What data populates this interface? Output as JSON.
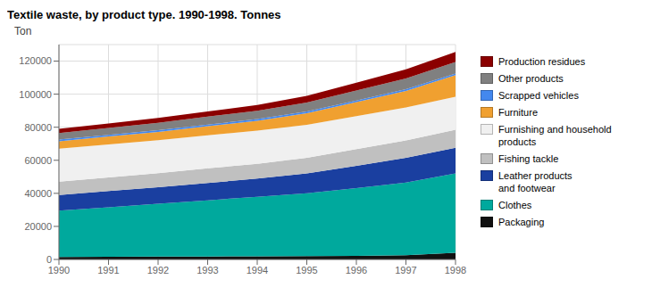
{
  "chart_data": {
    "type": "area",
    "stacked": true,
    "title": "Textile waste, by product type. 1990-1998. Tonnes",
    "ylabel": "Ton",
    "x": [
      1990,
      1991,
      1992,
      1993,
      1994,
      1995,
      1996,
      1997,
      1998
    ],
    "xlim": [
      1990,
      1998
    ],
    "xticks": [
      1990,
      1991,
      1992,
      1993,
      1994,
      1995,
      1996,
      1997,
      1998
    ],
    "ylim": [
      0,
      130000
    ],
    "yticks": [
      0,
      20000,
      40000,
      60000,
      80000,
      100000,
      120000
    ],
    "grid": true,
    "legend": "right",
    "series": [
      {
        "name": "Packaging",
        "color": "#111111",
        "values": [
          1500,
          1600,
          1700,
          1800,
          1900,
          2000,
          2200,
          2500,
          4000
        ]
      },
      {
        "name": "Clothes",
        "color": "#00a99d",
        "values": [
          28000,
          30000,
          32000,
          34000,
          36000,
          38000,
          41000,
          44000,
          48000
        ]
      },
      {
        "name": "Leather products\nand footwear",
        "color": "#1a3fa0",
        "values": [
          9500,
          9800,
          10000,
          10500,
          11000,
          12000,
          13500,
          15000,
          15500
        ]
      },
      {
        "name": "Fishing tackle",
        "color": "#c0c0c0",
        "values": [
          8000,
          8200,
          8500,
          8800,
          9000,
          9500,
          10000,
          10500,
          11000
        ]
      },
      {
        "name": "Furnishing and household\nproducts",
        "color": "#f0f0f0",
        "values": [
          20000,
          20000,
          20000,
          20000,
          20000,
          20000,
          20000,
          20000,
          20000
        ]
      },
      {
        "name": "Furniture",
        "color": "#f0a030",
        "values": [
          4500,
          4800,
          5000,
          5500,
          6000,
          7000,
          8500,
          10000,
          13000
        ]
      },
      {
        "name": "Scrapped vehicles",
        "color": "#4488ee",
        "values": [
          1000,
          1000,
          1000,
          1000,
          1000,
          1000,
          1000,
          1000,
          1000
        ]
      },
      {
        "name": "Other products",
        "color": "#808080",
        "values": [
          4000,
          4200,
          4500,
          4800,
          5000,
          5500,
          6000,
          6500,
          7000
        ]
      },
      {
        "name": "Production residues",
        "color": "#8b0000",
        "values": [
          2500,
          2700,
          3000,
          3200,
          3500,
          4000,
          4800,
          5500,
          6000
        ]
      }
    ]
  }
}
